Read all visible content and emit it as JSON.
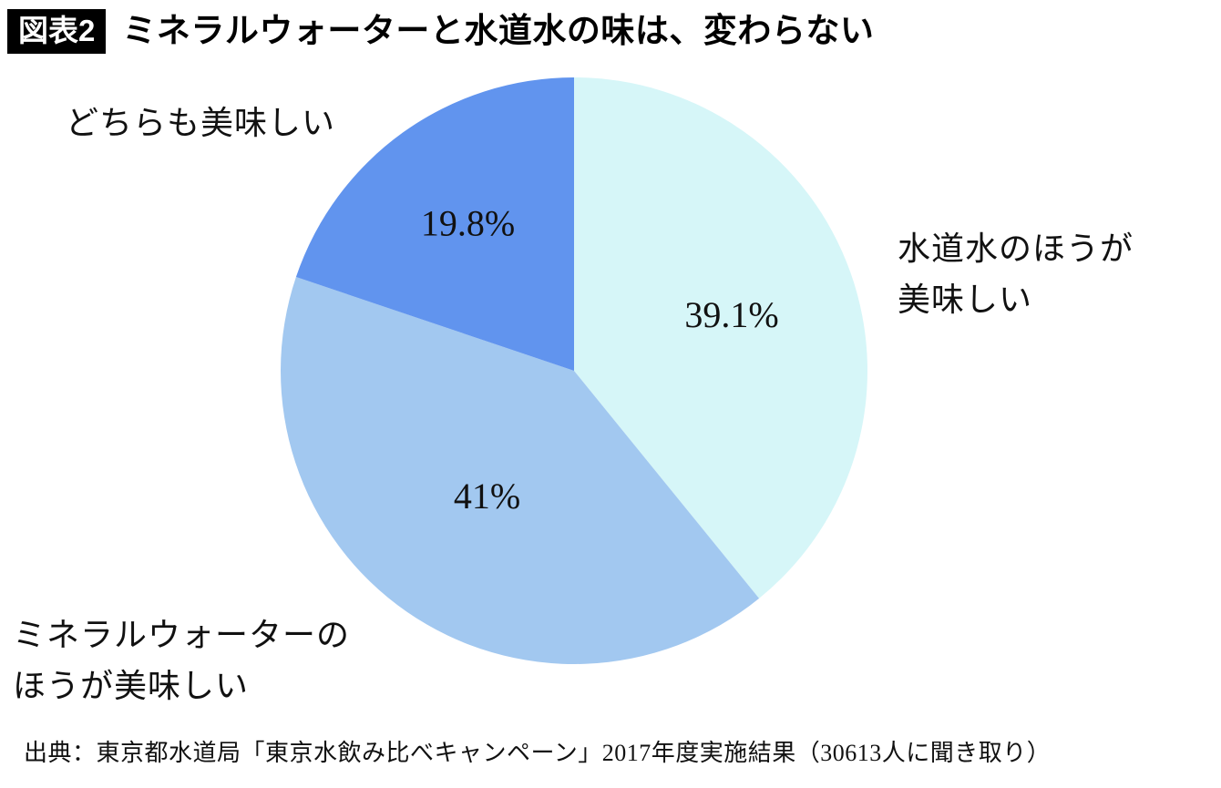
{
  "header": {
    "badge": "図表2",
    "title": "ミネラルウォーターと水道水の味は、変わらない"
  },
  "chart_data": {
    "type": "pie",
    "title": "ミネラルウォーターと水道水の味は、変わらない",
    "start_angle_deg": -90,
    "direction": "clockwise",
    "legend_position": "outside-labels",
    "slices": [
      {
        "label": "水道水のほうが美味しい",
        "value": 39.1,
        "display": "39.1%",
        "color": "#d6f6f8",
        "label_r": 0.57
      },
      {
        "label": "ミネラルウォーターのほうが美味しい",
        "value": 41.0,
        "display": "41%",
        "color": "#a2c8f0",
        "label_r": 0.52
      },
      {
        "label": "どちらも美味しい",
        "value": 19.8,
        "display": "19.8%",
        "color": "#6194ee",
        "label_r": 0.62
      }
    ]
  },
  "annotations": {
    "both_line1": "どちらも美味しい",
    "tap_line1": "水道水のほうが",
    "tap_line2": "美味しい",
    "mineral_line1": "ミネラルウォーターの",
    "mineral_line2": "ほうが美味しい"
  },
  "source": "出典：東京都水道局「東京水飲み比べキャンペーン」2017年度実施結果（30613人に聞き取り）"
}
